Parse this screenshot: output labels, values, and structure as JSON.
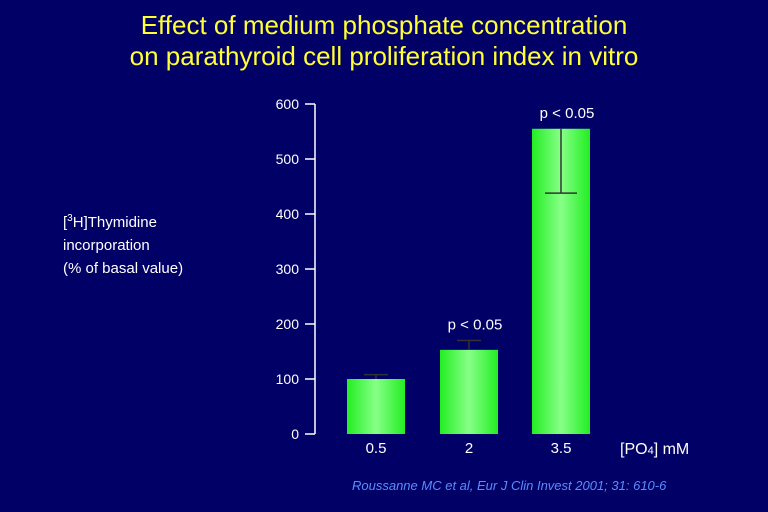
{
  "title_line1": "Effect of medium phosphate concentration",
  "title_line2": "on parathyroid cell proliferation index in vitro",
  "ylabel_line1_sup": "3",
  "ylabel_line1_rest": "H]Thymidine",
  "ylabel_line2": "incorporation",
  "ylabel_line3": "(% of basal value)",
  "xlabel_main": "[PO",
  "xlabel_sub": "4",
  "xlabel_unit": "] mM",
  "citation": "Roussanne MC et al, Eur J Clin Invest 2001; 31: 610-6",
  "colors": {
    "background": "#000066",
    "title": "#ffff33",
    "bar": "#33ff33",
    "axis": "#ffffff",
    "citation": "#5a8cff"
  },
  "chart_data": {
    "type": "bar",
    "categories": [
      "0.5",
      "2",
      "3.5"
    ],
    "values": [
      100,
      153,
      555
    ],
    "error_upper": [
      108,
      170,
      555
    ],
    "error_lower": [
      100,
      153,
      438
    ],
    "annotations": [
      "",
      "p < 0.05",
      "p < 0.05"
    ],
    "yticks": [
      0,
      100,
      200,
      300,
      400,
      500,
      600
    ],
    "ylim": [
      0,
      600
    ]
  }
}
